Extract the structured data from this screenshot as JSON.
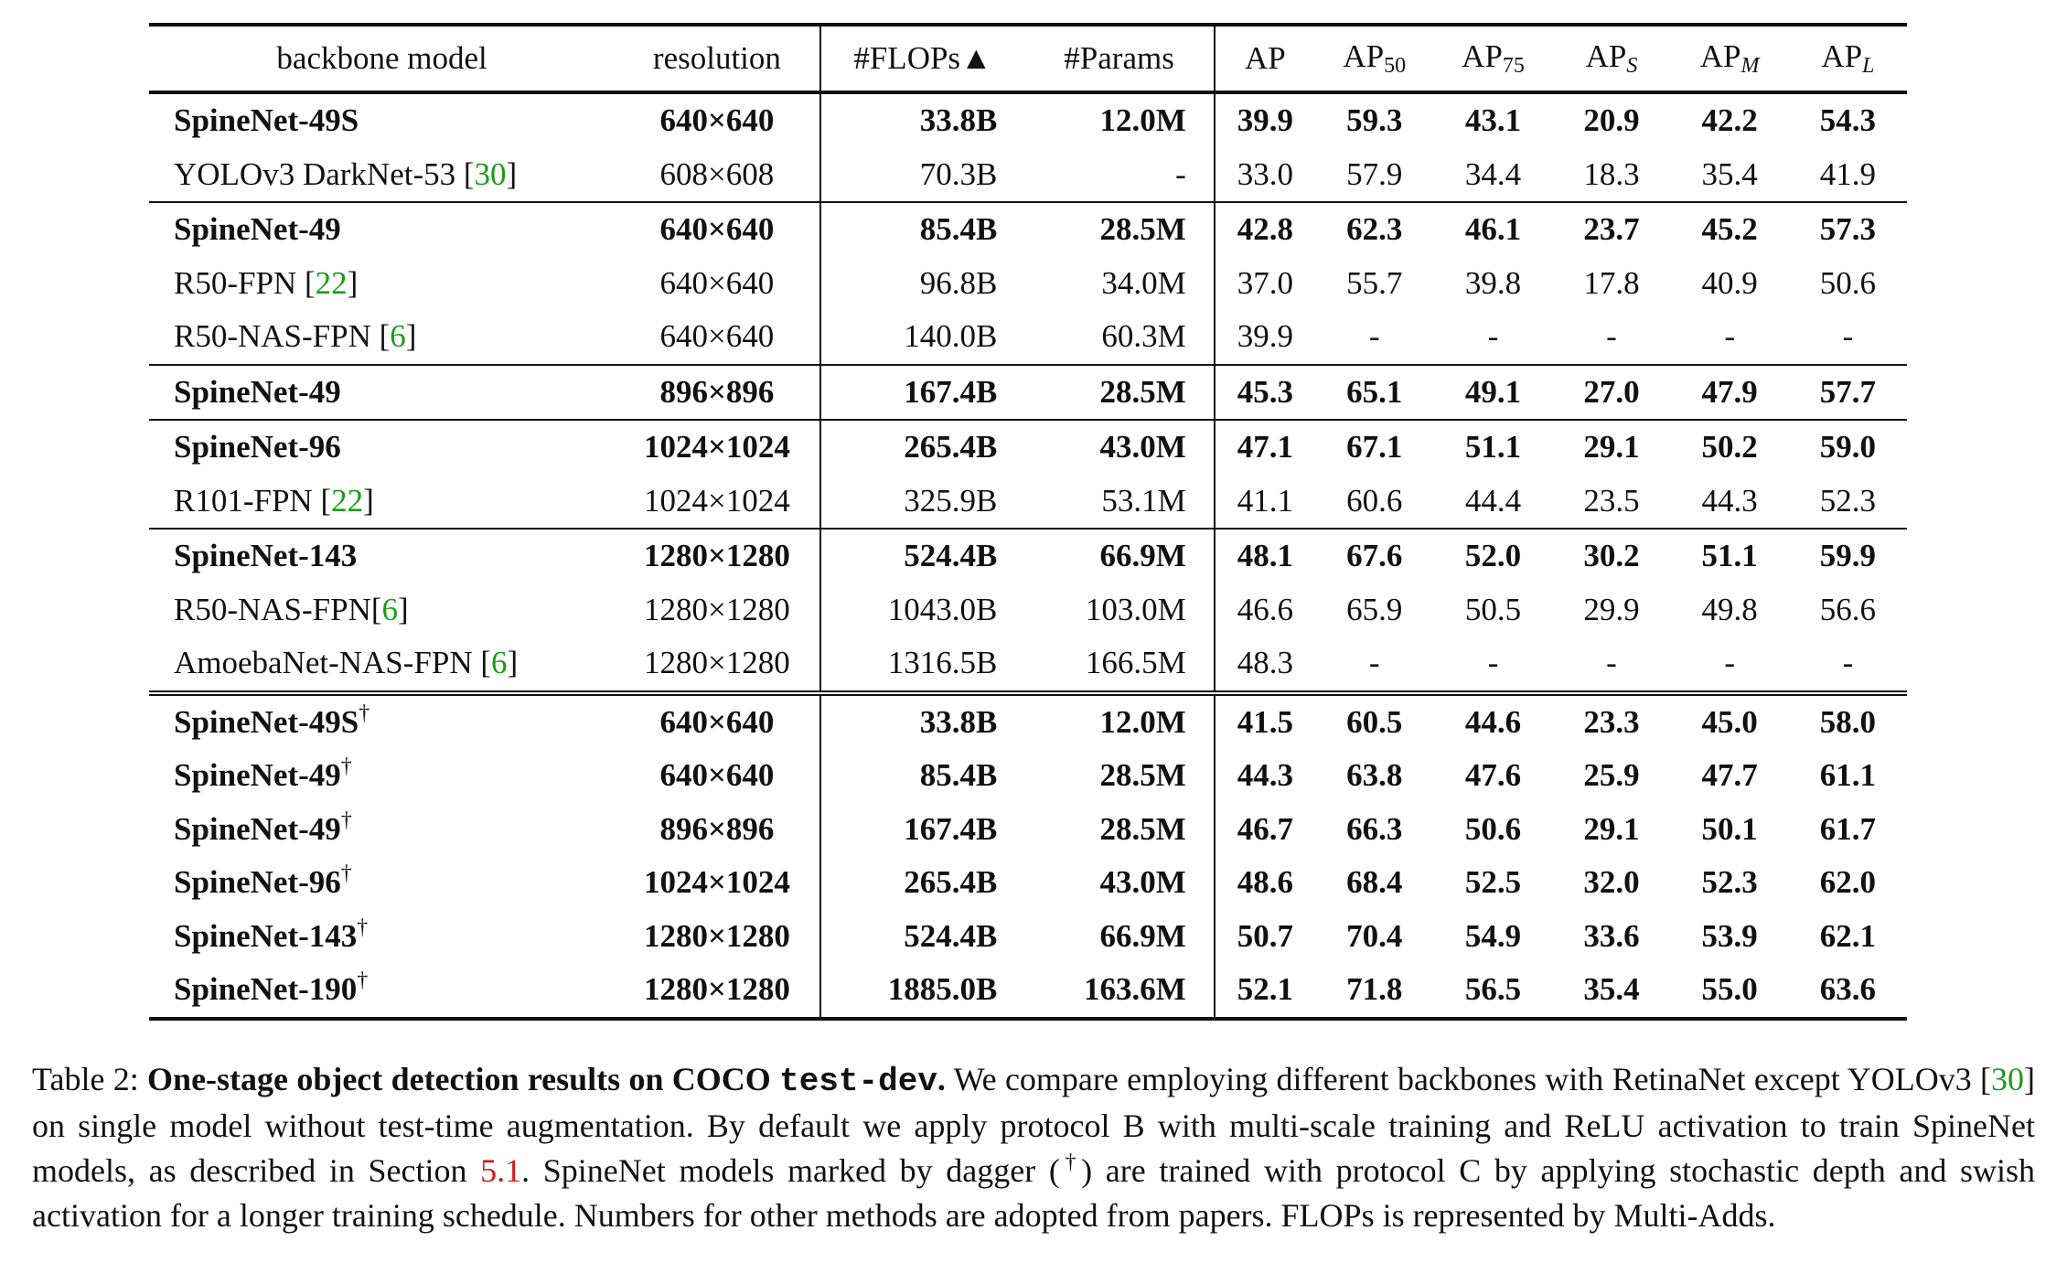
{
  "table": {
    "headers": {
      "backbone": "backbone model",
      "resolution": "resolution",
      "flops": "#FLOPs▲",
      "params": "#Params",
      "ap": "AP",
      "ap50_base": "AP",
      "ap50_sub": "50",
      "ap75_base": "AP",
      "ap75_sub": "75",
      "aps_base": "AP",
      "aps_sub": "S",
      "apm_base": "AP",
      "apm_sub": "M",
      "apl_base": "AP",
      "apl_sub": "L"
    },
    "rows": [
      {
        "name": "SpineNet-49S",
        "ref": "",
        "dagger": "",
        "bold": true,
        "group_start": false,
        "dbl": false,
        "res": "640×640",
        "flops": "33.8B",
        "params": "12.0M",
        "ap": "39.9",
        "ap50": "59.3",
        "ap75": "43.1",
        "aps": "20.9",
        "apm": "42.2",
        "apl": "54.3"
      },
      {
        "name": "YOLOv3 DarkNet-53 ",
        "ref": "30",
        "dagger": "",
        "bold": false,
        "group_start": false,
        "dbl": false,
        "res": "608×608",
        "flops": "70.3B",
        "params": "-",
        "ap": "33.0",
        "ap50": "57.9",
        "ap75": "34.4",
        "aps": "18.3",
        "apm": "35.4",
        "apl": "41.9"
      },
      {
        "name": "SpineNet-49",
        "ref": "",
        "dagger": "",
        "bold": true,
        "group_start": true,
        "dbl": false,
        "res": "640×640",
        "flops": "85.4B",
        "params": "28.5M",
        "ap": "42.8",
        "ap50": "62.3",
        "ap75": "46.1",
        "aps": "23.7",
        "apm": "45.2",
        "apl": "57.3"
      },
      {
        "name": "R50-FPN ",
        "ref": "22",
        "dagger": "",
        "bold": false,
        "group_start": false,
        "dbl": false,
        "res": "640×640",
        "flops": "96.8B",
        "params": "34.0M",
        "ap": "37.0",
        "ap50": "55.7",
        "ap75": "39.8",
        "aps": "17.8",
        "apm": "40.9",
        "apl": "50.6"
      },
      {
        "name": "R50-NAS-FPN ",
        "ref": "6",
        "dagger": "",
        "bold": false,
        "group_start": false,
        "dbl": false,
        "res": "640×640",
        "flops": "140.0B",
        "params": "60.3M",
        "ap": "39.9",
        "ap50": "-",
        "ap75": "-",
        "aps": "-",
        "apm": "-",
        "apl": "-"
      },
      {
        "name": "SpineNet-49",
        "ref": "",
        "dagger": "",
        "bold": true,
        "group_start": true,
        "dbl": false,
        "res": "896×896",
        "flops": "167.4B",
        "params": "28.5M",
        "ap": "45.3",
        "ap50": "65.1",
        "ap75": "49.1",
        "aps": "27.0",
        "apm": "47.9",
        "apl": "57.7"
      },
      {
        "name": "SpineNet-96",
        "ref": "",
        "dagger": "",
        "bold": true,
        "group_start": true,
        "dbl": false,
        "res": "1024×1024",
        "flops": "265.4B",
        "params": "43.0M",
        "ap": "47.1",
        "ap50": "67.1",
        "ap75": "51.1",
        "aps": "29.1",
        "apm": "50.2",
        "apl": "59.0"
      },
      {
        "name": "R101-FPN ",
        "ref": "22",
        "dagger": "",
        "bold": false,
        "group_start": false,
        "dbl": false,
        "res": "1024×1024",
        "flops": "325.9B",
        "params": "53.1M",
        "ap": "41.1",
        "ap50": "60.6",
        "ap75": "44.4",
        "aps": "23.5",
        "apm": "44.3",
        "apl": "52.3"
      },
      {
        "name": "SpineNet-143",
        "ref": "",
        "dagger": "",
        "bold": true,
        "group_start": true,
        "dbl": false,
        "res": "1280×1280",
        "flops": "524.4B",
        "params": "66.9M",
        "ap": "48.1",
        "ap50": "67.6",
        "ap75": "52.0",
        "aps": "30.2",
        "apm": "51.1",
        "apl": "59.9"
      },
      {
        "name": "R50-NAS-FPN",
        "ref": "6",
        "dagger": "",
        "bold": false,
        "group_start": false,
        "dbl": false,
        "res": "1280×1280",
        "flops": "1043.0B",
        "params": "103.0M",
        "ap": "46.6",
        "ap50": "65.9",
        "ap75": "50.5",
        "aps": "29.9",
        "apm": "49.8",
        "apl": "56.6"
      },
      {
        "name": "AmoebaNet-NAS-FPN ",
        "ref": "6",
        "dagger": "",
        "bold": false,
        "group_start": false,
        "dbl": false,
        "res": "1280×1280",
        "flops": "1316.5B",
        "params": "166.5M",
        "ap": "48.3",
        "ap50": "-",
        "ap75": "-",
        "aps": "-",
        "apm": "-",
        "apl": "-"
      },
      {
        "name": "SpineNet-49S",
        "ref": "",
        "dagger": "†",
        "bold": true,
        "group_start": false,
        "dbl": true,
        "res": "640×640",
        "flops": "33.8B",
        "params": "12.0M",
        "ap": "41.5",
        "ap50": "60.5",
        "ap75": "44.6",
        "aps": "23.3",
        "apm": "45.0",
        "apl": "58.0"
      },
      {
        "name": "SpineNet-49",
        "ref": "",
        "dagger": "†",
        "bold": true,
        "group_start": false,
        "dbl": false,
        "res": "640×640",
        "flops": "85.4B",
        "params": "28.5M",
        "ap": "44.3",
        "ap50": "63.8",
        "ap75": "47.6",
        "aps": "25.9",
        "apm": "47.7",
        "apl": "61.1"
      },
      {
        "name": "SpineNet-49",
        "ref": "",
        "dagger": "†",
        "bold": true,
        "group_start": false,
        "dbl": false,
        "res": "896×896",
        "flops": "167.4B",
        "params": "28.5M",
        "ap": "46.7",
        "ap50": "66.3",
        "ap75": "50.6",
        "aps": "29.1",
        "apm": "50.1",
        "apl": "61.7"
      },
      {
        "name": "SpineNet-96",
        "ref": "",
        "dagger": "†",
        "bold": true,
        "group_start": false,
        "dbl": false,
        "res": "1024×1024",
        "flops": "265.4B",
        "params": "43.0M",
        "ap": "48.6",
        "ap50": "68.4",
        "ap75": "52.5",
        "aps": "32.0",
        "apm": "52.3",
        "apl": "62.0"
      },
      {
        "name": "SpineNet-143",
        "ref": "",
        "dagger": "†",
        "bold": true,
        "group_start": false,
        "dbl": false,
        "res": "1280×1280",
        "flops": "524.4B",
        "params": "66.9M",
        "ap": "50.7",
        "ap50": "70.4",
        "ap75": "54.9",
        "aps": "33.6",
        "apm": "53.9",
        "apl": "62.1"
      },
      {
        "name": "SpineNet-190",
        "ref": "",
        "dagger": "†",
        "bold": true,
        "group_start": false,
        "dbl": false,
        "res": "1280×1280",
        "flops": "1885.0B",
        "params": "163.6M",
        "ap": "52.1",
        "ap50": "71.8",
        "ap75": "56.5",
        "aps": "35.4",
        "apm": "55.0",
        "apl": "63.6"
      }
    ]
  },
  "caption": {
    "label": "Table 2: ",
    "title_pre": "One-stage object detection results on COCO ",
    "title_mono": "test-dev",
    "title_post": ".",
    "t1": " We compare employing different backbones with RetinaNet except YOLOv3 [",
    "ref1": "30",
    "t2": "] on single model without test-time augmentation.  By default we apply protocol B with multi-scale training and ReLU activation to train SpineNet models, as described in Section ",
    "ref2": "5.1",
    "t3": ".  SpineNet models marked by dagger (",
    "dagger": "†",
    "t4": ") are trained with protocol C by applying stochastic depth and swish activation for a longer training schedule. Numbers for other methods are adopted from papers. FLOPs is represented by Multi-Adds."
  }
}
